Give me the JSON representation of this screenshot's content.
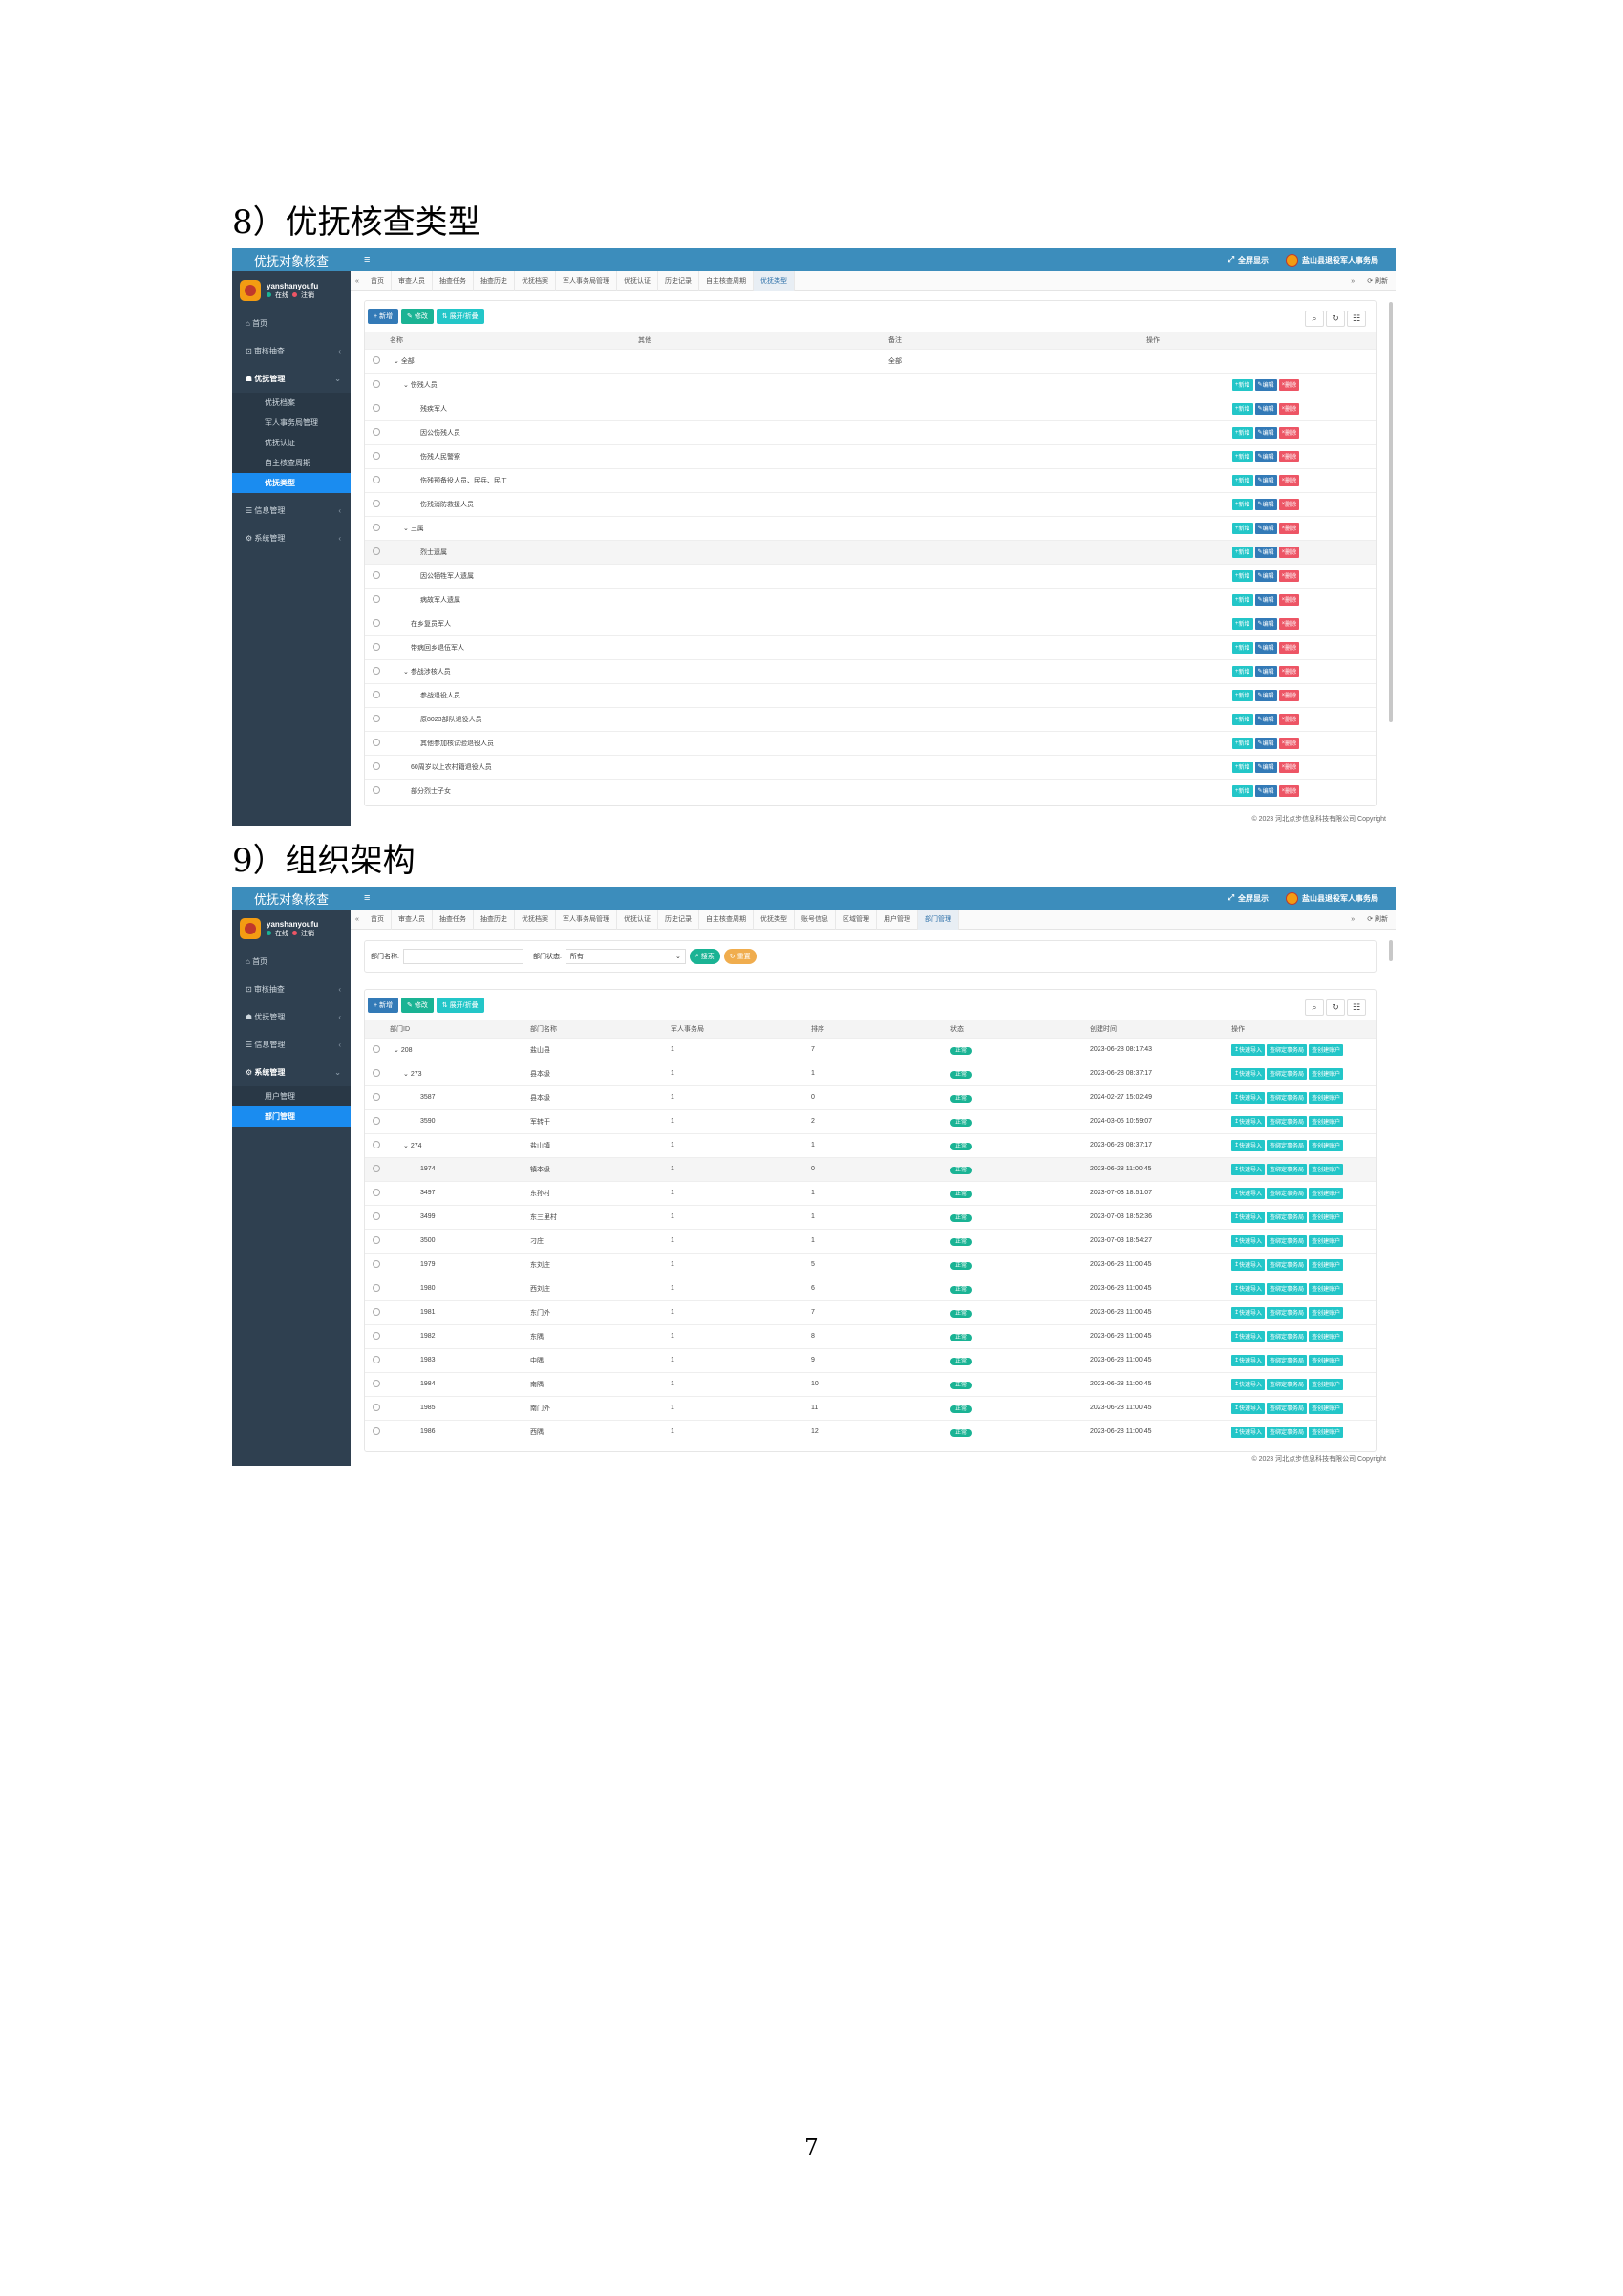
{
  "doc": {
    "heading1": "8）优抚核查类型",
    "heading2": "9）组织架构",
    "page_number": "7"
  },
  "app": {
    "brand": "优抚对象核查",
    "menu_icon": "≡",
    "fullscreen": "全屏显示",
    "org": "盐山县退役军人事务局",
    "user": "yanshanyoufu",
    "online": "在线",
    "logout": "注销",
    "refresh": "刷新",
    "copyright": "© 2023 河北点步信息科技有限公司 Copyright",
    "colors": {
      "accent": "#3c8dbc",
      "sidebar": "#2f4050",
      "active": "#1a8cf0",
      "success": "#1ab394"
    }
  },
  "s1": {
    "sidebar": {
      "home": "首页",
      "audit": "审核抽查",
      "youfu": "优抚管理",
      "subs": [
        "优抚档案",
        "军人事务局管理",
        "优抚认证",
        "自主核查周期",
        "优抚类型"
      ],
      "info": "信息管理",
      "system": "系统管理"
    },
    "tabs": [
      "首页",
      "审查人员",
      "抽查任务",
      "抽查历史",
      "优抚档案",
      "军人事务局管理",
      "优抚认证",
      "历史记录",
      "自主核查周期",
      "优抚类型"
    ],
    "buttons": {
      "add": "新增",
      "edit": "修改",
      "expand": "展开/折叠"
    },
    "columns": [
      "名称",
      "其他",
      "备注",
      "操作"
    ],
    "row_ops": {
      "add": "新增",
      "edit": "编辑",
      "del": "删除"
    },
    "rows": [
      {
        "name": "全部",
        "remark": "全部"
      },
      {
        "name": "伤残人员"
      },
      {
        "name": "残疾军人"
      },
      {
        "name": "因公伤残人员"
      },
      {
        "name": "伤残人民警察"
      },
      {
        "name": "伤残预备役人员、民兵、民工"
      },
      {
        "name": "伤残消防救援人员"
      },
      {
        "name": "三属"
      },
      {
        "name": "烈士遗属"
      },
      {
        "name": "因公牺牲军人遗属"
      },
      {
        "name": "病故军人遗属"
      },
      {
        "name": "在乡复员军人"
      },
      {
        "name": "带病回乡退伍军人"
      },
      {
        "name": "参战涉核人员"
      },
      {
        "name": "参战退役人员"
      },
      {
        "name": "原8023部队退役人员"
      },
      {
        "name": "其他参加核试验退役人员"
      },
      {
        "name": "60周岁以上农村籍退役人员"
      },
      {
        "name": "部分烈士子女"
      }
    ]
  },
  "s2": {
    "sidebar": {
      "home": "首页",
      "audit": "审核抽查",
      "youfu": "优抚管理",
      "info": "信息管理",
      "system": "系统管理",
      "subs": [
        "用户管理",
        "部门管理"
      ]
    },
    "tabs": [
      "首页",
      "审查人员",
      "抽查任务",
      "抽查历史",
      "优抚档案",
      "军人事务局管理",
      "优抚认证",
      "历史记录",
      "自主核查周期",
      "优抚类型",
      "账号信息",
      "区域管理",
      "用户管理",
      "部门管理"
    ],
    "search": {
      "name_label": "部门名称:",
      "status_label": "部门状态:",
      "status_value": "所有",
      "search_btn": "搜索",
      "reset_btn": "重置"
    },
    "buttons": {
      "add": "新增",
      "edit": "修改",
      "expand": "展开/折叠"
    },
    "columns": [
      "部门ID",
      "部门名称",
      "军人事务局",
      "排序",
      "状态",
      "创建时间",
      "操作"
    ],
    "status_text": "正常",
    "row_ops": {
      "import": "快速导入",
      "bind": "查绑定事务局",
      "account": "查创建账户"
    },
    "rows": [
      {
        "id": "208",
        "name": "盐山县",
        "bureau": "1",
        "sort": "7",
        "time": "2023-06-28 08:17:43"
      },
      {
        "id": "273",
        "name": "县本级",
        "bureau": "1",
        "sort": "1",
        "time": "2023-06-28 08:37:17"
      },
      {
        "id": "3587",
        "name": "县本级",
        "bureau": "1",
        "sort": "0",
        "time": "2024-02-27 15:02:49"
      },
      {
        "id": "3590",
        "name": "军转干",
        "bureau": "1",
        "sort": "2",
        "time": "2024-03-05 10:59:07"
      },
      {
        "id": "274",
        "name": "盐山镇",
        "bureau": "1",
        "sort": "1",
        "time": "2023-06-28 08:37:17"
      },
      {
        "id": "1974",
        "name": "镇本级",
        "bureau": "1",
        "sort": "0",
        "time": "2023-06-28 11:00:45"
      },
      {
        "id": "3497",
        "name": "东孙村",
        "bureau": "1",
        "sort": "1",
        "time": "2023-07-03 18:51:07"
      },
      {
        "id": "3499",
        "name": "东三里村",
        "bureau": "1",
        "sort": "1",
        "time": "2023-07-03 18:52:36"
      },
      {
        "id": "3500",
        "name": "刁庄",
        "bureau": "1",
        "sort": "1",
        "time": "2023-07-03 18:54:27"
      },
      {
        "id": "1979",
        "name": "东刘庄",
        "bureau": "1",
        "sort": "5",
        "time": "2023-06-28 11:00:45"
      },
      {
        "id": "1980",
        "name": "西刘庄",
        "bureau": "1",
        "sort": "6",
        "time": "2023-06-28 11:00:45"
      },
      {
        "id": "1981",
        "name": "东门外",
        "bureau": "1",
        "sort": "7",
        "time": "2023-06-28 11:00:45"
      },
      {
        "id": "1982",
        "name": "东隅",
        "bureau": "1",
        "sort": "8",
        "time": "2023-06-28 11:00:45"
      },
      {
        "id": "1983",
        "name": "中隅",
        "bureau": "1",
        "sort": "9",
        "time": "2023-06-28 11:00:45"
      },
      {
        "id": "1984",
        "name": "南隅",
        "bureau": "1",
        "sort": "10",
        "time": "2023-06-28 11:00:45"
      },
      {
        "id": "1985",
        "name": "南门外",
        "bureau": "1",
        "sort": "11",
        "time": "2023-06-28 11:00:45"
      },
      {
        "id": "1986",
        "name": "西隅",
        "bureau": "1",
        "sort": "12",
        "time": "2023-06-28 11:00:45"
      }
    ]
  }
}
